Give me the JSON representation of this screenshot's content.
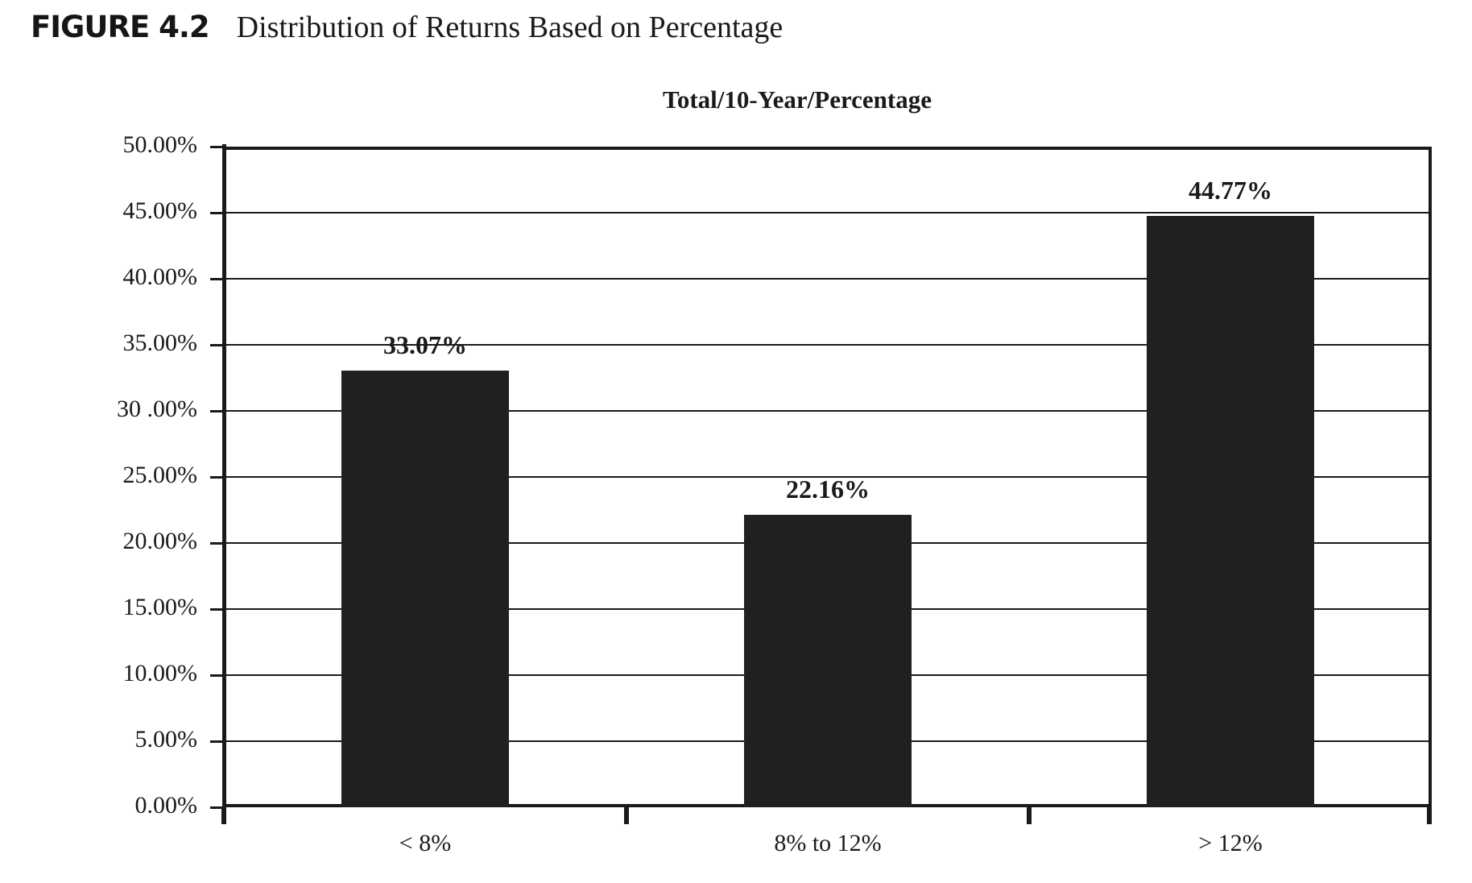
{
  "figure": {
    "label": "FIGURE 4.2",
    "title": "Distribution of Returns Based on Percentage"
  },
  "chart_data": {
    "type": "bar",
    "title": "Total/10-Year/Percentage",
    "categories": [
      "< 8%",
      "8% to 12%",
      "> 12%"
    ],
    "values": [
      33.07,
      22.16,
      44.77
    ],
    "value_labels": [
      "33.07%",
      "22.16%",
      "44.77%"
    ],
    "xlabel": "",
    "ylabel": "",
    "ylim": [
      0,
      50
    ],
    "ytick_step": 5,
    "ytick_labels": [
      "50.00%",
      "45.00%",
      "40.00%",
      "35.00%",
      "30 .00%",
      "25.00%",
      "20.00%",
      "15.00%",
      "10.00%",
      "5.00%",
      "0.00%"
    ],
    "grid": true,
    "legend": false,
    "bar_color": "#211f20",
    "axis_color": "#1b191a",
    "text_color": "#1c191a"
  }
}
